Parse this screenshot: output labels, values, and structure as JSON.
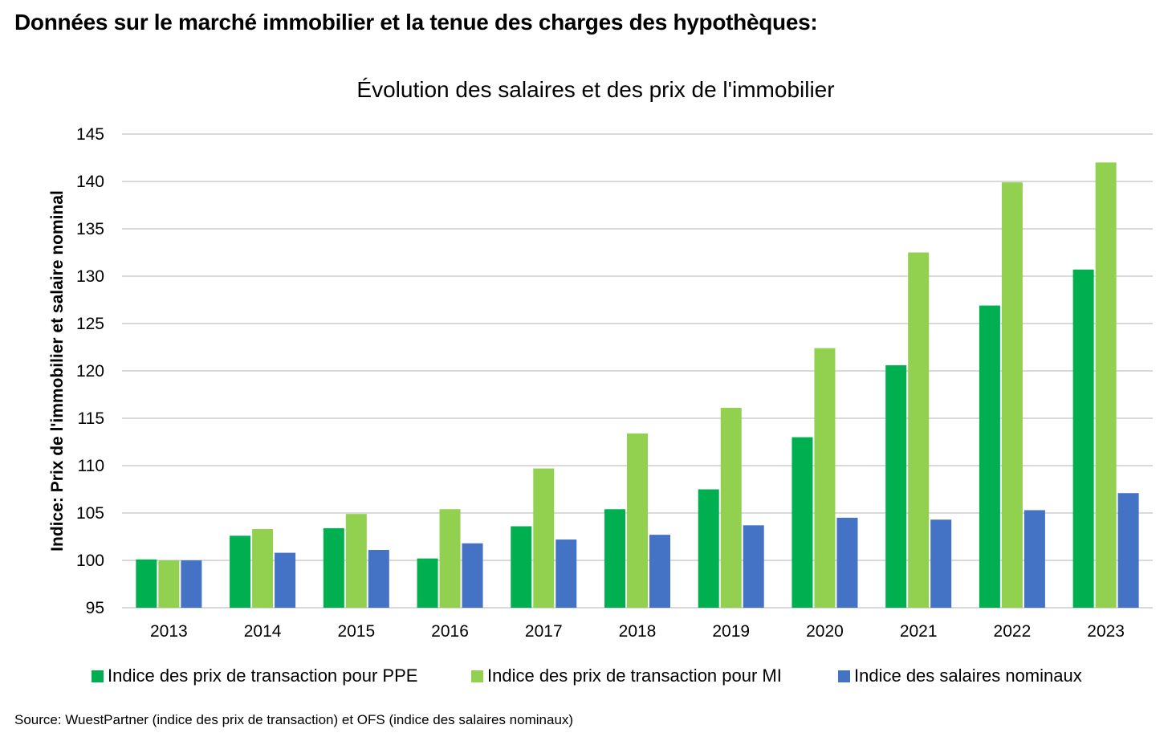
{
  "page": {
    "heading": "Données sur le marché immobilier et la tenue des charges des hypothèques:",
    "source": "Source: WuestPartner (indice des prix de transaction) et OFS (indice des salaires nominaux)"
  },
  "colors": {
    "ppe": "#00B050",
    "mi": "#92D050",
    "salaires": "#4472C4",
    "grid": "#D9D9D9"
  },
  "chart_data": {
    "type": "bar",
    "title": "Évolution des salaires et des prix de l'immobilier",
    "xlabel": "",
    "ylabel": "Indice: Prix de l'immobilier et salaire nominal",
    "ylim": [
      95,
      145
    ],
    "yticks": [
      95,
      100,
      105,
      110,
      115,
      120,
      125,
      130,
      135,
      140,
      145
    ],
    "grid": true,
    "legend_position": "bottom",
    "categories": [
      "2013",
      "2014",
      "2015",
      "2016",
      "2017",
      "2018",
      "2019",
      "2020",
      "2021",
      "2022",
      "2023"
    ],
    "series": [
      {
        "name": "Indice des prix de transaction pour PPE",
        "color_key": "ppe",
        "values": [
          100.1,
          102.6,
          103.4,
          100.2,
          103.6,
          105.4,
          107.5,
          113.0,
          120.6,
          126.9,
          130.7
        ]
      },
      {
        "name": "Indice des prix de transaction pour MI",
        "color_key": "mi",
        "values": [
          100.0,
          103.3,
          104.9,
          105.4,
          109.7,
          113.4,
          116.1,
          122.4,
          132.5,
          139.9,
          142.0
        ]
      },
      {
        "name": "Indice des salaires nominaux",
        "color_key": "salaires",
        "values": [
          100.0,
          100.8,
          101.1,
          101.8,
          102.2,
          102.7,
          103.7,
          104.5,
          104.3,
          105.3,
          107.1
        ]
      }
    ]
  }
}
